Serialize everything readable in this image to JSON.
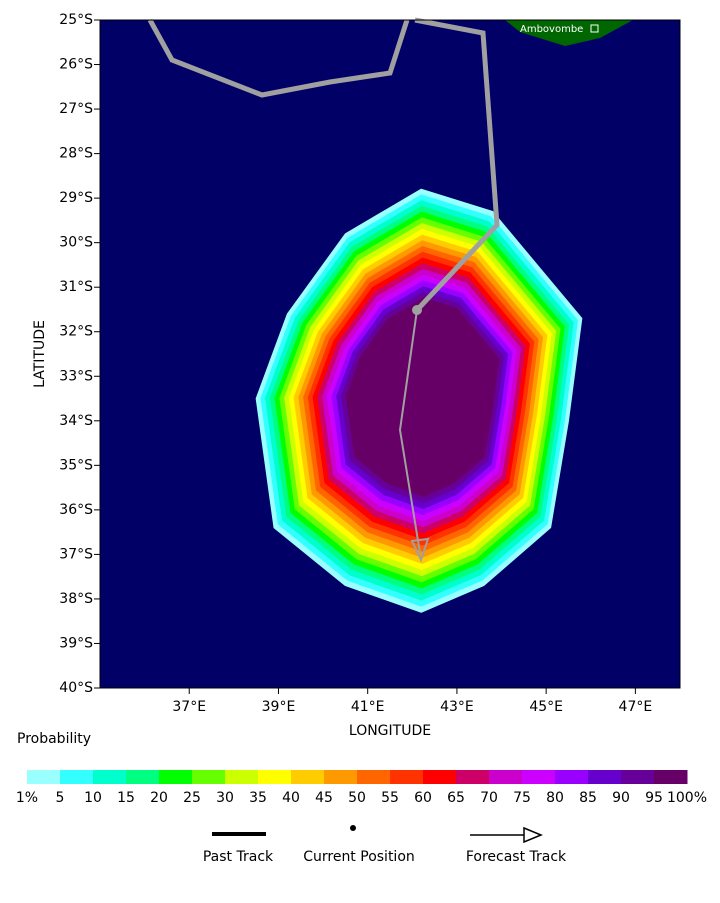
{
  "map": {
    "x_axis_label": "LONGITUDE",
    "y_axis_label": "LATITUDE",
    "place_label": "Ambovombe",
    "lonlim": [
      35,
      48
    ],
    "latlim": [
      -40,
      -25
    ],
    "lon_ticks": [
      {
        "value": 37,
        "label": "37°E"
      },
      {
        "value": 39,
        "label": "39°E"
      },
      {
        "value": 41,
        "label": "41°E"
      },
      {
        "value": 43,
        "label": "43°E"
      },
      {
        "value": 45,
        "label": "45°E"
      },
      {
        "value": 47,
        "label": "47°E"
      }
    ],
    "lat_ticks": [
      {
        "value": -25,
        "label": "25°S"
      },
      {
        "value": -26,
        "label": "26°S"
      },
      {
        "value": -27,
        "label": "27°S"
      },
      {
        "value": -28,
        "label": "28°S"
      },
      {
        "value": -29,
        "label": "29°S"
      },
      {
        "value": -30,
        "label": "30°S"
      },
      {
        "value": -31,
        "label": "31°S"
      },
      {
        "value": -32,
        "label": "32°S"
      },
      {
        "value": -33,
        "label": "33°S"
      },
      {
        "value": -34,
        "label": "34°S"
      },
      {
        "value": -35,
        "label": "35°S"
      },
      {
        "value": -36,
        "label": "36°S"
      },
      {
        "value": -37,
        "label": "37°S"
      },
      {
        "value": -38,
        "label": "38°S"
      },
      {
        "value": -39,
        "label": "39°S"
      },
      {
        "value": -40,
        "label": "40°S"
      }
    ]
  },
  "colorbar": {
    "title": "Probability",
    "labels": [
      "1%",
      "5",
      "10",
      "15",
      "20",
      "25",
      "30",
      "35",
      "40",
      "45",
      "50",
      "55",
      "60",
      "65",
      "70",
      "75",
      "80",
      "85",
      "90",
      "95",
      "100%"
    ],
    "colors": [
      "#99ffff",
      "#33ffff",
      "#00ffcc",
      "#00ff80",
      "#00ff00",
      "#66ff00",
      "#ccff00",
      "#ffff00",
      "#ffcc00",
      "#ff9900",
      "#ff6600",
      "#ff3300",
      "#ff0000",
      "#cc0066",
      "#cc00cc",
      "#cc00ff",
      "#9900ff",
      "#6600cc",
      "#660099",
      "#660066"
    ]
  },
  "legend": {
    "items": [
      "Past Track",
      "Current Position",
      "Forecast Track"
    ]
  }
}
